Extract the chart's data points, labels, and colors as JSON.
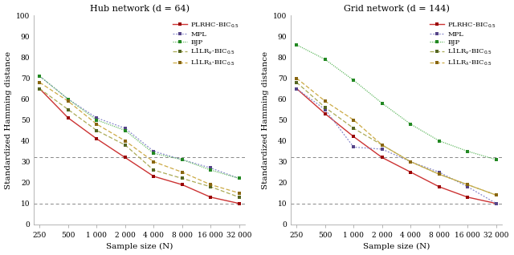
{
  "x_values": [
    250,
    500,
    1000,
    2000,
    4000,
    8000,
    16000,
    32000
  ],
  "x_labels": [
    "250",
    "500",
    "1 000",
    "2 000",
    "4 000",
    "8 000",
    "16 000",
    "32 000"
  ],
  "hub": {
    "title": "Hub network (d = 64)",
    "PLRHC": [
      65,
      51,
      41,
      32,
      23,
      19,
      13,
      10
    ],
    "MPL": [
      71,
      60,
      51,
      46,
      35,
      31,
      27,
      22
    ],
    "BJP": [
      71,
      60,
      50,
      45,
      34,
      31,
      26,
      22
    ],
    "L1LRv": [
      65,
      55,
      45,
      38,
      26,
      22,
      18,
      13
    ],
    "L1LRa": [
      68,
      59,
      48,
      40,
      30,
      25,
      19,
      15
    ]
  },
  "grid": {
    "title": "Grid network (d = 144)",
    "PLRHC": [
      65,
      53,
      42,
      32,
      25,
      18,
      13,
      10
    ],
    "MPL": [
      65,
      55,
      37,
      36,
      30,
      25,
      18,
      10
    ],
    "BJP": [
      86,
      79,
      69,
      58,
      48,
      40,
      35,
      31
    ],
    "L1LRv": [
      68,
      56,
      46,
      38,
      30,
      24,
      19,
      14
    ],
    "L1LRa": [
      70,
      59,
      50,
      38,
      30,
      24,
      19,
      14
    ]
  },
  "hline1": 32,
  "hline2": 10,
  "series_colors": {
    "PLRHC": "#cc3333",
    "MPL": "#8888cc",
    "BJP": "#66bb66",
    "L1LRv": "#aaaa55",
    "L1LRa": "#ccaa44"
  },
  "marker_colors": {
    "PLRHC": "#990000",
    "MPL": "#554488",
    "BJP": "#228822",
    "L1LRv": "#556622",
    "L1LRa": "#886611"
  },
  "legend_labels": {
    "PLRHC": "PLRHC-BIC$_{0.5}$",
    "MPL": "MPL",
    "BJP": "BJP",
    "L1LRv": "L1LR$_\\nu$-BIC$_{0.5}$",
    "L1LRa": "L1LR$_\\lambda$-BIC$_{0.5}$"
  },
  "ylabel": "Standardized Hamming distance",
  "xlabel": "Sample size (N)",
  "ylim": [
    0,
    100
  ],
  "background_color": "#ffffff"
}
